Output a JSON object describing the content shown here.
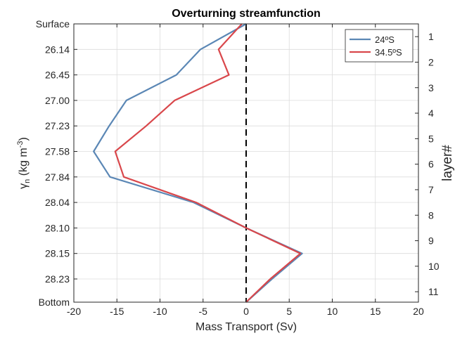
{
  "chart_data": {
    "type": "line",
    "title": "Overturning streamfunction",
    "xlabel": "Mass Transport (Sv)",
    "ylabel": "γn (kg m-3)",
    "ylabel_parts": {
      "symbol": "γ",
      "subscript": "n",
      "units_prefix": " (kg m",
      "units_superscript": "-3",
      "units_suffix": ")"
    },
    "y2label": "layer#",
    "xlim": [
      -20,
      20
    ],
    "xticks": [
      -20,
      -15,
      -10,
      -5,
      0,
      5,
      10,
      15,
      20
    ],
    "xtick_labels": [
      "-20",
      "-15",
      "-10",
      "-5",
      "0",
      "5",
      "10",
      "15",
      "20"
    ],
    "ylim": [
      0,
      12
    ],
    "yticks": [
      0,
      1,
      2,
      3,
      4,
      5,
      6,
      7,
      8,
      9,
      10,
      11,
      12
    ],
    "ytick_labels": [
      "Surface",
      "26.14",
      "26.45",
      "27.00",
      "27.23",
      "27.58",
      "27.84",
      "28.04",
      "28.10",
      "28.15",
      "28.23",
      "Bottom"
    ],
    "ytick_positions": [
      0,
      1.1,
      2.2,
      3.3,
      4.4,
      5.5,
      6.6,
      7.7,
      8.8,
      9.9,
      11.0,
      12.0
    ],
    "y2ticks": [
      1,
      2,
      3,
      4,
      5,
      6,
      7,
      8,
      9,
      10,
      11
    ],
    "y2tick_labels": [
      "1",
      "2",
      "3",
      "4",
      "5",
      "6",
      "7",
      "8",
      "9",
      "10",
      "11"
    ],
    "y2tick_positions": [
      0.55,
      1.65,
      2.75,
      3.85,
      4.95,
      6.05,
      7.15,
      8.25,
      9.35,
      10.45,
      11.55
    ],
    "grid": true,
    "legend_position": "top-right",
    "zero_line": {
      "x": 0,
      "style": "dashed",
      "color": "#000000"
    },
    "series": [
      {
        "name": "24ºS",
        "color": "#5b87b5",
        "x": [
          0,
          -5.3,
          -8.1,
          -13.9,
          -15.9,
          -17.7,
          -15.8,
          -6.1,
          0,
          6.5,
          3,
          0
        ],
        "y": [
          0,
          1.1,
          2.2,
          3.3,
          4.4,
          5.5,
          6.6,
          7.7,
          8.8,
          9.9,
          11.0,
          12.0
        ]
      },
      {
        "name": "34.5ºS",
        "color": "#d9474b",
        "x": [
          -0.5,
          -3.2,
          -2,
          -8.3,
          -11.6,
          -15.2,
          -14.2,
          -5.8,
          0,
          6.3,
          2.8,
          0
        ],
        "y": [
          0,
          1.1,
          2.2,
          3.3,
          4.4,
          5.5,
          6.6,
          7.7,
          8.8,
          9.9,
          11.0,
          12.0
        ]
      }
    ]
  }
}
